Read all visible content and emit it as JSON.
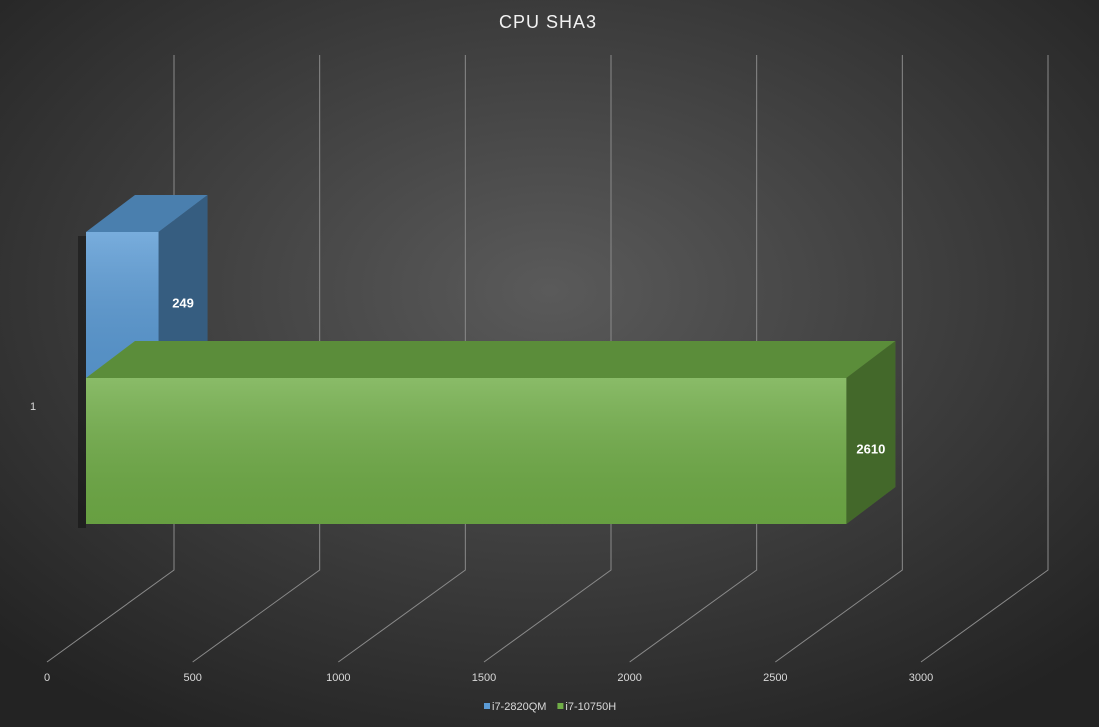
{
  "chart_data": {
    "type": "bar3d",
    "title": "CPU SHA3",
    "categories": [
      "1"
    ],
    "series": [
      {
        "name": "i7-2820QM",
        "color": "#5b9bd5",
        "values": [
          249
        ]
      },
      {
        "name": "i7-10750H",
        "color": "#70ad47",
        "values": [
          2610
        ]
      }
    ],
    "xlim": [
      0,
      3000
    ],
    "xticks": [
      0,
      500,
      1000,
      1500,
      2000,
      2500,
      3000
    ],
    "grid": true
  }
}
